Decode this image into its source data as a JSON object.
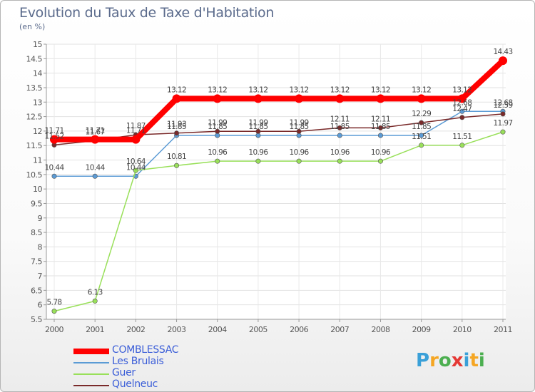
{
  "title": "Evolution du Taux de Taxe d'Habitation",
  "subtitle": "(en %)",
  "logo": [
    "P",
    "r",
    "o",
    "x",
    "i",
    "t",
    "i"
  ],
  "chart_data": {
    "type": "line",
    "title": "Evolution du Taux de Taxe d'Habitation",
    "ylabel": "(en %)",
    "xlabel": "",
    "ylim": [
      5.5,
      15
    ],
    "yticks": [
      5.5,
      6,
      6.5,
      7,
      7.5,
      8,
      8.5,
      9,
      9.5,
      10,
      10.5,
      11,
      11.5,
      12,
      12.5,
      13,
      13.5,
      14,
      14.5,
      15
    ],
    "categories": [
      "2000",
      "2001",
      "2002",
      "2003",
      "2004",
      "2005",
      "2006",
      "2007",
      "2008",
      "2009",
      "2010",
      "2011"
    ],
    "legend_position": "bottom-left",
    "series": [
      {
        "name": "COMBLESSAC",
        "color": "#ff0000",
        "values": [
          11.71,
          11.71,
          11.71,
          13.12,
          13.12,
          13.12,
          13.12,
          13.12,
          13.12,
          13.12,
          13.12,
          14.43
        ],
        "labels": [
          "11.71",
          "11.71",
          "11.71",
          "13.12",
          "13.12",
          "13.12",
          "13.12",
          "13.12",
          "13.12",
          "13.12",
          "13.12",
          "14.43"
        ]
      },
      {
        "name": "Les Brulais",
        "color": "#5b9bd5",
        "values": [
          10.44,
          10.44,
          10.44,
          11.85,
          11.85,
          11.85,
          11.85,
          11.85,
          11.85,
          11.85,
          12.68,
          12.68
        ],
        "labels": [
          "10.44",
          "10.44",
          "10.44",
          "11.85",
          "11.85",
          "11.85",
          "11.85",
          "11.85",
          "11.85",
          "11.85",
          "12.68",
          "12.68"
        ]
      },
      {
        "name": "Guer",
        "color": "#99e05a",
        "values": [
          5.78,
          6.13,
          10.64,
          10.81,
          10.96,
          10.96,
          10.96,
          10.96,
          10.96,
          11.51,
          11.51,
          11.97
        ],
        "labels": [
          "5.78",
          "6.13",
          "10.64",
          "10.81",
          "10.96",
          "10.96",
          "10.96",
          "10.96",
          "10.96",
          "11.51",
          "11.51",
          "11.97"
        ]
      },
      {
        "name": "Quelneuc",
        "color": "#7a2a2a",
        "values": [
          11.52,
          11.67,
          11.87,
          11.93,
          11.99,
          11.99,
          11.99,
          12.11,
          12.11,
          12.29,
          12.47,
          12.59
        ],
        "labels": [
          "11.52",
          "11.67",
          "11.87",
          "11.93",
          "11.99",
          "11.99",
          "11.99",
          "12.11",
          "12.11",
          "12.29",
          "12.47",
          "12.59"
        ]
      }
    ]
  }
}
